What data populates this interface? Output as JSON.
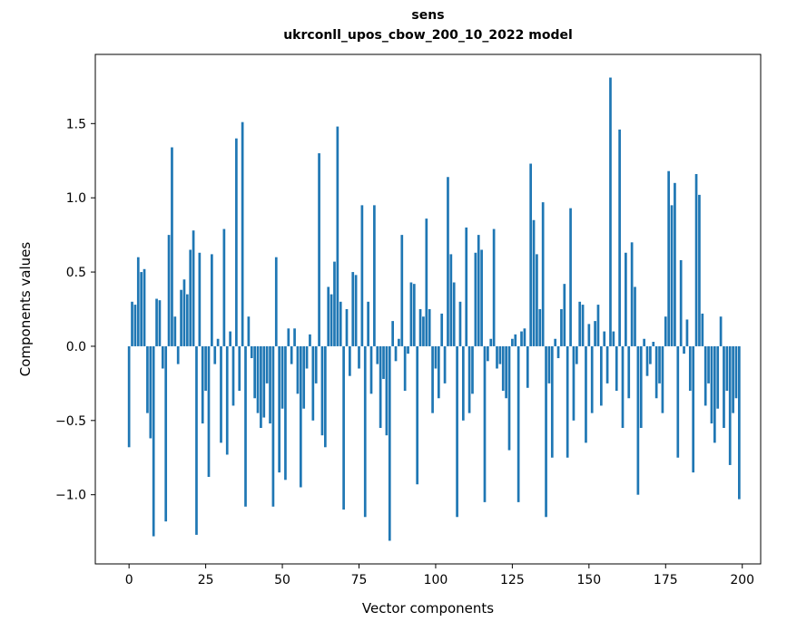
{
  "chart_data": {
    "type": "bar",
    "title": "sens",
    "subtitle": "ukrconll_upos_cbow_200_10_2022 model",
    "xlabel": "Vector components",
    "ylabel": "Components values",
    "bar_color": "#1f77b4",
    "grid": false,
    "legend": "none",
    "xlim": [
      -11,
      206
    ],
    "ylim": [
      -1.466,
      1.966
    ],
    "xticks": [
      0,
      25,
      50,
      75,
      100,
      125,
      150,
      175,
      200
    ],
    "xtick_labels": [
      "0",
      "25",
      "50",
      "75",
      "100",
      "125",
      "150",
      "175",
      "200"
    ],
    "yticks": [
      -1.0,
      -0.5,
      0.0,
      0.5,
      1.0,
      1.5
    ],
    "ytick_labels": [
      "−1.0",
      "−0.5",
      "0.0",
      "0.5",
      "1.0",
      "1.5"
    ],
    "x": "component index 0..199",
    "values": [
      -0.68,
      0.3,
      0.28,
      0.6,
      0.5,
      0.52,
      -0.45,
      -0.62,
      -1.28,
      0.32,
      0.31,
      -0.15,
      -1.18,
      0.75,
      1.34,
      0.2,
      -0.12,
      0.38,
      0.45,
      0.35,
      0.65,
      0.78,
      -1.27,
      0.63,
      -0.52,
      -0.3,
      -0.88,
      0.62,
      -0.12,
      0.05,
      -0.65,
      0.79,
      -0.73,
      0.1,
      -0.4,
      1.4,
      -0.3,
      1.51,
      -1.08,
      0.2,
      -0.08,
      -0.35,
      -0.45,
      -0.55,
      -0.48,
      -0.25,
      -0.52,
      -1.08,
      0.6,
      -0.85,
      -0.42,
      -0.9,
      0.12,
      -0.12,
      0.12,
      -0.32,
      -0.95,
      -0.42,
      -0.15,
      0.08,
      -0.5,
      -0.25,
      1.3,
      -0.6,
      -0.68,
      0.4,
      0.35,
      0.57,
      1.48,
      0.3,
      -1.1,
      0.25,
      -0.2,
      0.5,
      0.48,
      -0.15,
      0.95,
      -1.15,
      0.3,
      -0.32,
      0.95,
      -0.12,
      -0.55,
      -0.22,
      -0.6,
      -1.31,
      0.17,
      -0.1,
      0.05,
      0.75,
      -0.3,
      -0.05,
      0.43,
      0.42,
      -0.93,
      0.25,
      0.2,
      0.86,
      0.25,
      -0.45,
      -0.15,
      -0.35,
      0.22,
      -0.25,
      1.14,
      0.62,
      0.43,
      -1.15,
      0.3,
      -0.5,
      0.8,
      -0.45,
      -0.32,
      0.63,
      0.75,
      0.65,
      -1.05,
      -0.1,
      0.05,
      0.79,
      -0.15,
      -0.12,
      -0.3,
      -0.35,
      -0.7,
      0.05,
      0.08,
      -1.05,
      0.1,
      0.12,
      -0.28,
      1.23,
      0.85,
      0.62,
      0.25,
      0.97,
      -1.15,
      -0.25,
      -0.75,
      0.05,
      -0.08,
      0.25,
      0.42,
      -0.75,
      0.93,
      -0.5,
      -0.12,
      0.3,
      0.28,
      -0.65,
      0.15,
      -0.45,
      0.17,
      0.28,
      -0.4,
      0.1,
      -0.25,
      1.81,
      0.1,
      -0.3,
      1.46,
      -0.55,
      0.63,
      -0.35,
      0.7,
      0.4,
      -1.0,
      -0.55,
      0.05,
      -0.2,
      -0.12,
      0.03,
      -0.35,
      -0.25,
      -0.45,
      0.2,
      1.18,
      0.95,
      1.1,
      -0.75,
      0.58,
      -0.05,
      0.18,
      -0.3,
      -0.85,
      1.16,
      1.02,
      0.22,
      -0.4,
      -0.25,
      -0.52,
      -0.65,
      -0.42,
      0.2,
      -0.55,
      -0.3,
      -0.8,
      -0.45,
      -0.35,
      -1.03
    ]
  }
}
